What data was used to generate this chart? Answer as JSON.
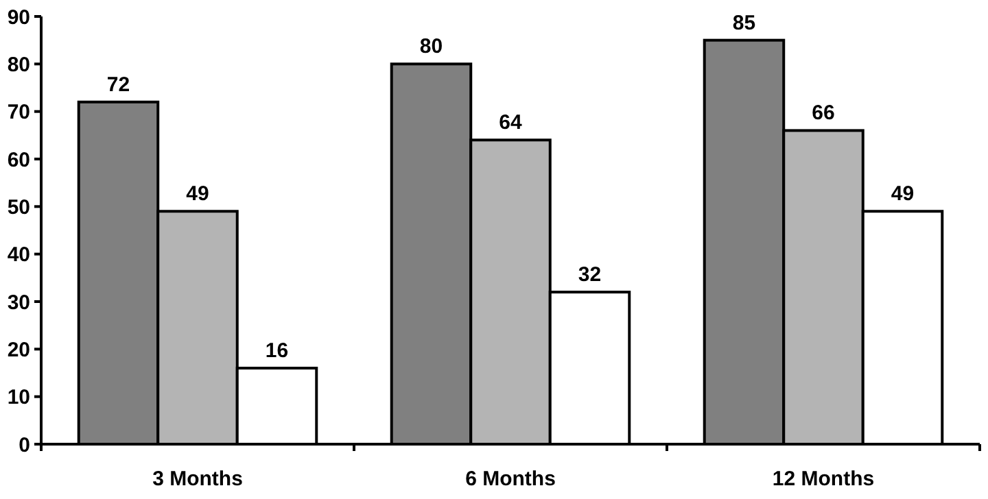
{
  "chart_data": {
    "type": "bar",
    "categories": [
      "3 Months",
      "6 Months",
      "12 Months"
    ],
    "series": [
      {
        "color": "#808080",
        "values": [
          72,
          80,
          85
        ]
      },
      {
        "color": "#b4b4b4",
        "values": [
          49,
          64,
          66
        ]
      },
      {
        "color": "#ffffff",
        "values": [
          16,
          32,
          49
        ]
      }
    ],
    "ylim": [
      0,
      90
    ],
    "yticks": [
      0,
      10,
      20,
      30,
      40,
      50,
      60,
      70,
      80,
      90
    ],
    "grid": false,
    "data_labels": true
  }
}
